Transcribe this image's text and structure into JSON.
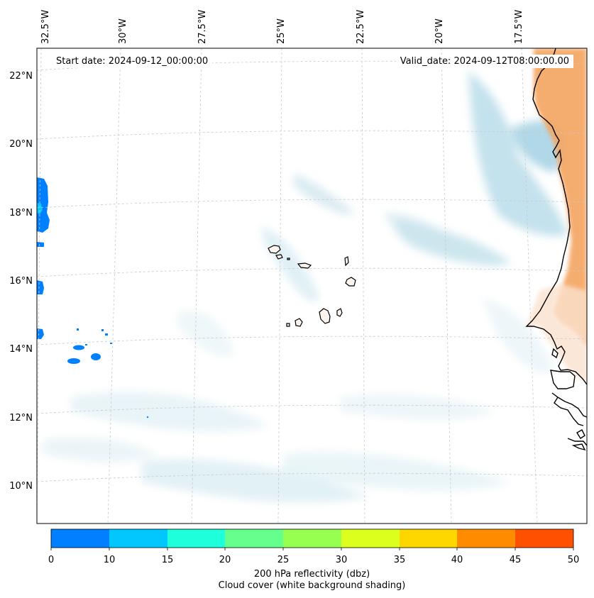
{
  "map": {
    "annotations": {
      "start_date": "Start date: 2024-09-12_00:00:00",
      "valid_date": "Valid_date: 2024-09-12T08:00:00.00"
    },
    "longitude_labels": [
      "32.5°W",
      "30°W",
      "27.5°W",
      "25°W",
      "22.5°W",
      "20°W",
      "17.5°W"
    ],
    "latitude_labels": [
      "22°N",
      "20°N",
      "18°N",
      "16°N",
      "14°N",
      "12°N",
      "10°N"
    ],
    "colors": {
      "coastline": "#000000",
      "land_shading": "#f4a460",
      "cloud_shading": "#add8e6",
      "gridline": "#c8c8c8"
    }
  },
  "colorbar": {
    "ticks": [
      "0",
      "10",
      "15",
      "20",
      "25",
      "30",
      "35",
      "40",
      "45",
      "50"
    ],
    "colors": [
      "#0080ff",
      "#00c8ff",
      "#1effdc",
      "#64ff8c",
      "#96ff50",
      "#dcff1e",
      "#ffd700",
      "#ff8c00",
      "#ff5000"
    ],
    "label_line1": "200 hPa reflectivity (dbz)",
    "label_line2": "Cloud cover (white background shading)"
  }
}
